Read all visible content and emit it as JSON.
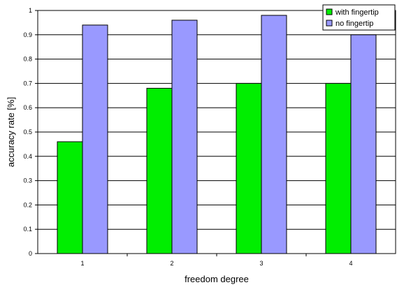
{
  "chart_data": {
    "type": "bar",
    "title": "",
    "xlabel": "freedom degree",
    "ylabel": "accuracy rate [%]",
    "categories": [
      "1",
      "2",
      "3",
      "4"
    ],
    "series": [
      {
        "name": "with fingertip",
        "values": [
          0.46,
          0.68,
          0.7,
          0.7
        ],
        "color": "#00ee00"
      },
      {
        "name": "no fingertip",
        "values": [
          0.94,
          0.96,
          0.98,
          0.9
        ],
        "color": "#9999ff"
      }
    ],
    "ylim": [
      0,
      1
    ],
    "yticks": [
      "0",
      "0.1",
      "0.2",
      "0.3",
      "0.4",
      "0.5",
      "0.6",
      "0.7",
      "0.8",
      "0.9",
      "1"
    ],
    "grid": true,
    "legend_position": "top-right"
  }
}
